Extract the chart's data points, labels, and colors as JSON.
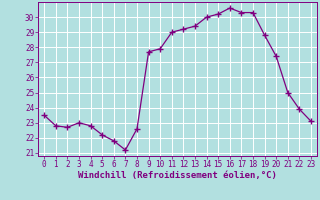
{
  "x": [
    0,
    1,
    2,
    3,
    4,
    5,
    6,
    7,
    8,
    9,
    10,
    11,
    12,
    13,
    14,
    15,
    16,
    17,
    18,
    19,
    20,
    21,
    22,
    23
  ],
  "y": [
    23.5,
    22.8,
    22.7,
    23.0,
    22.8,
    22.2,
    21.8,
    21.2,
    22.6,
    27.7,
    27.9,
    29.0,
    29.2,
    29.4,
    30.0,
    30.2,
    30.6,
    30.3,
    30.3,
    28.8,
    27.4,
    25.0,
    23.9,
    23.1
  ],
  "line_color": "#800080",
  "marker": "+",
  "marker_size": 4,
  "bg_color": "#b2e0e0",
  "grid_color": "#ffffff",
  "xlabel": "Windchill (Refroidissement éolien,°C)",
  "ylim_min": 20.8,
  "ylim_max": 31.0,
  "yticks": [
    21,
    22,
    23,
    24,
    25,
    26,
    27,
    28,
    29,
    30
  ],
  "xlim_min": -0.5,
  "xlim_max": 23.5,
  "xticks": [
    0,
    1,
    2,
    3,
    4,
    5,
    6,
    7,
    8,
    9,
    10,
    11,
    12,
    13,
    14,
    15,
    16,
    17,
    18,
    19,
    20,
    21,
    22,
    23
  ],
  "tick_fontsize": 5.5,
  "xlabel_fontsize": 6.5
}
